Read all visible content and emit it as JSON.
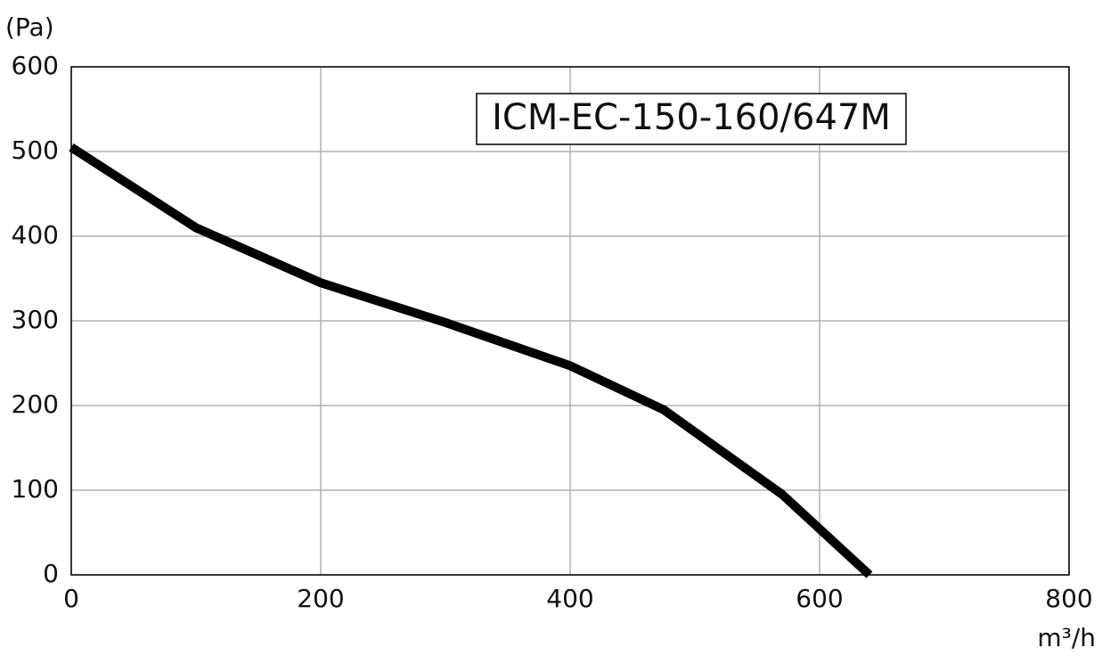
{
  "chart_data": {
    "type": "line",
    "y_label": "(Pa)",
    "x_label": "m³/h",
    "annotation": "ICM-EC-150-160/647M",
    "x": [
      0,
      100,
      200,
      300,
      400,
      475,
      570,
      640
    ],
    "series": [
      {
        "color": "#000000",
        "values": [
          505,
          410,
          345,
          298,
          247,
          195,
          95,
          0
        ]
      }
    ],
    "xlim": [
      0,
      800
    ],
    "xticks": [
      0,
      200,
      400,
      600,
      800
    ],
    "ylim": [
      0,
      600
    ],
    "yticks": [
      0,
      100,
      200,
      300,
      400,
      500,
      600
    ],
    "grid": true
  }
}
